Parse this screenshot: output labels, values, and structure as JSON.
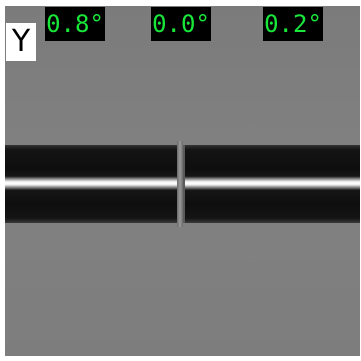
{
  "view": {
    "axis": "Y"
  },
  "angles": {
    "left": "0.8°",
    "center": "0.0°",
    "right": "0.2°"
  },
  "colors": {
    "angle_text": "#19e83a",
    "angle_background": "#000000",
    "background": "#7f7f7f",
    "fiber_core": "#ffffff",
    "fiber_cladding": "#0e0e0e"
  }
}
